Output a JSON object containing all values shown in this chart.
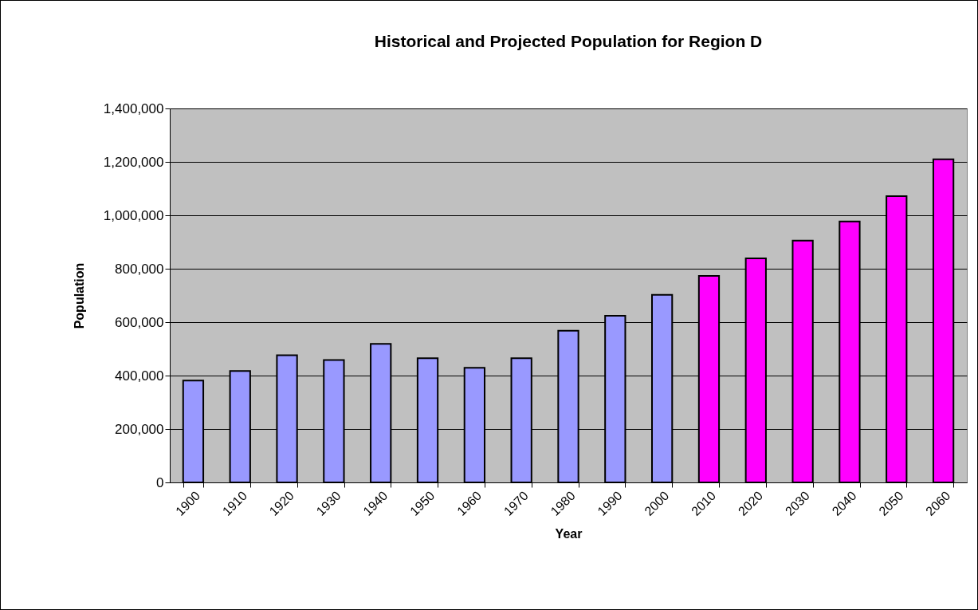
{
  "chart_data": {
    "type": "bar",
    "title": "Historical and Projected Population for Region D",
    "xlabel": "Year",
    "ylabel": "Population",
    "categories": [
      "1900",
      "1910",
      "1920",
      "1930",
      "1940",
      "1950",
      "1960",
      "1970",
      "1980",
      "1990",
      "2000",
      "2010",
      "2020",
      "2030",
      "2040",
      "2050",
      "2060"
    ],
    "values": [
      381000,
      417000,
      476000,
      458000,
      519000,
      465000,
      429000,
      465000,
      568000,
      624000,
      702000,
      773000,
      839000,
      905000,
      977000,
      1072000,
      1210000
    ],
    "colors": [
      "#9999ff",
      "#9999ff",
      "#9999ff",
      "#9999ff",
      "#9999ff",
      "#9999ff",
      "#9999ff",
      "#9999ff",
      "#9999ff",
      "#9999ff",
      "#9999ff",
      "#ff00ff",
      "#ff00ff",
      "#ff00ff",
      "#ff00ff",
      "#ff00ff",
      "#ff00ff"
    ],
    "ylim": [
      0,
      1400000
    ],
    "yticks": [
      0,
      {
        "value": 200000,
        "label": "200,000"
      },
      {
        "value": 400000,
        "label": "400,000"
      },
      {
        "value": 600000,
        "label": "600,000"
      },
      {
        "value": 800000,
        "label": "800,000"
      },
      {
        "value": 1000000,
        "label": "1,000,000"
      },
      {
        "value": 1200000,
        "label": "1,200,000"
      },
      {
        "value": 1400000,
        "label": "1,400,000"
      }
    ],
    "grid": "y"
  }
}
